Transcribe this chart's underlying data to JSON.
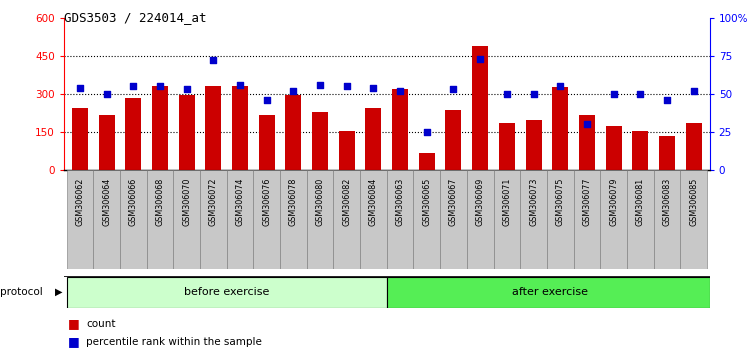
{
  "title": "GDS3503 / 224014_at",
  "categories": [
    "GSM306062",
    "GSM306064",
    "GSM306066",
    "GSM306068",
    "GSM306070",
    "GSM306072",
    "GSM306074",
    "GSM306076",
    "GSM306078",
    "GSM306080",
    "GSM306082",
    "GSM306084",
    "GSM306063",
    "GSM306065",
    "GSM306067",
    "GSM306069",
    "GSM306071",
    "GSM306073",
    "GSM306075",
    "GSM306077",
    "GSM306079",
    "GSM306081",
    "GSM306083",
    "GSM306085"
  ],
  "counts": [
    245,
    215,
    285,
    330,
    295,
    330,
    330,
    215,
    295,
    230,
    155,
    245,
    320,
    65,
    235,
    490,
    185,
    195,
    325,
    215,
    175,
    155,
    135,
    185
  ],
  "percentile_ranks": [
    54,
    50,
    55,
    55,
    53,
    72,
    56,
    46,
    52,
    56,
    55,
    54,
    52,
    25,
    53,
    73,
    50,
    50,
    55,
    30,
    50,
    50,
    46,
    52
  ],
  "before_exercise_count": 12,
  "after_exercise_count": 12,
  "bar_color": "#cc0000",
  "dot_color": "#0000cc",
  "before_color": "#ccffcc",
  "after_color": "#55ee55",
  "ylim_left": [
    0,
    600
  ],
  "ylim_right": [
    0,
    100
  ],
  "yticks_left": [
    0,
    150,
    300,
    450,
    600
  ],
  "yticks_right": [
    0,
    25,
    50,
    75,
    100
  ],
  "ytick_right_labels": [
    "0",
    "25",
    "50",
    "75",
    "100%"
  ],
  "grid_values": [
    150,
    300,
    450
  ]
}
